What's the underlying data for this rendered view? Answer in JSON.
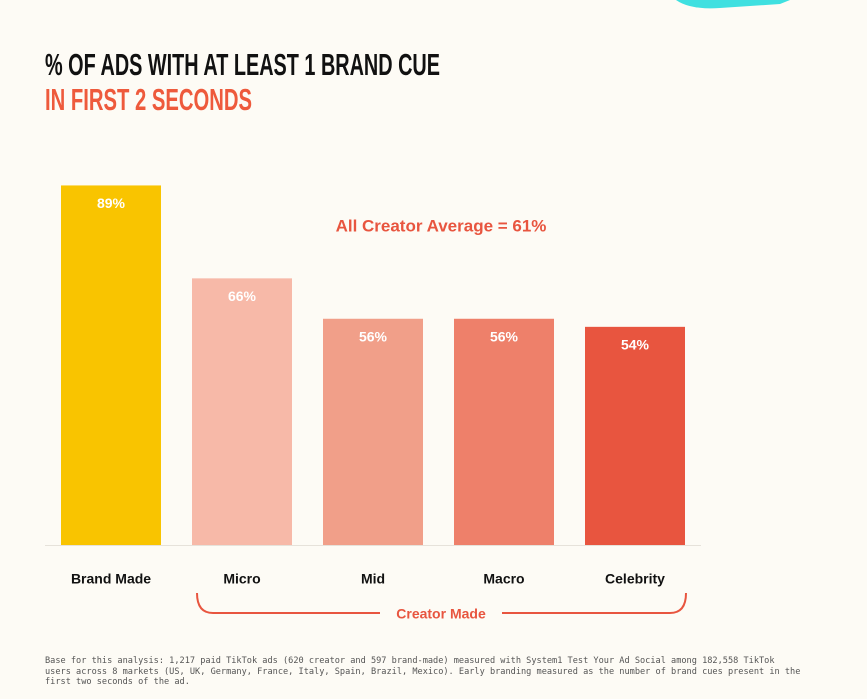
{
  "chart_data": {
    "type": "bar",
    "title": "% OF ADS WITH AT LEAST 1 BRAND CUE",
    "subtitle": "IN FIRST 2 SECONDS",
    "annotation": "All Creator Average = 61%",
    "group_label": "Creator Made",
    "categories": [
      "Brand Made",
      "Micro",
      "Mid",
      "Macro",
      "Celebrity"
    ],
    "values": [
      89,
      66,
      56,
      56,
      54
    ],
    "value_labels": [
      "89%",
      "66%",
      "56%",
      "56%",
      "54%"
    ],
    "colors": [
      "#f9c400",
      "#f7b9a8",
      "#f19f89",
      "#ee806a",
      "#e8553f"
    ],
    "ylim": [
      0,
      100
    ],
    "footnote": "Base for this analysis: 1,217 paid TikTok ads (620 creator and 597 brand-made) measured with System1 Test Your Ad Social among 182,558 TikTok users across 8 markets (US, UK, Germany, France, Italy, Spain, Brazil, Mexico). Early branding measured as the number of brand cues present in the first two seconds of the ad."
  }
}
